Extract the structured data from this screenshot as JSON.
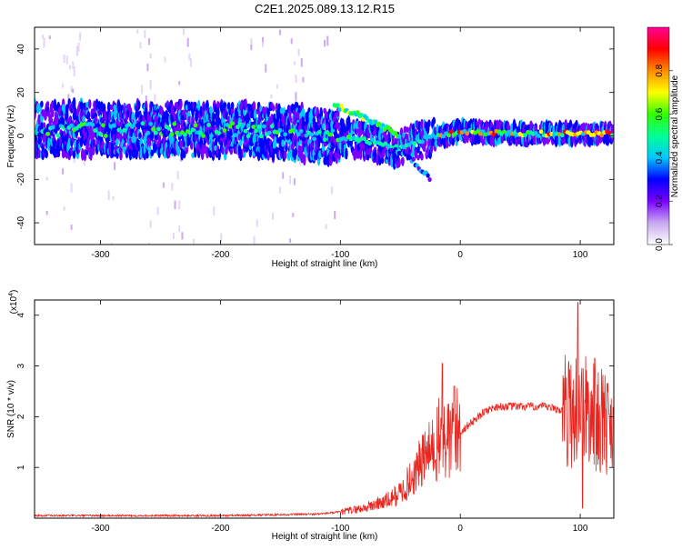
{
  "title": "C2E1.2025.089.13.12.R15",
  "chart_data": [
    {
      "type": "heatmap",
      "xlabel": "Height of straight line (km)",
      "ylabel": "Frequency (Hz)",
      "xlim": [
        -355,
        128
      ],
      "ylim": [
        -50,
        50
      ],
      "xticks": [
        -300,
        -200,
        -100,
        0,
        100
      ],
      "yticks": [
        -40,
        -20,
        0,
        20,
        40
      ],
      "colorbar": {
        "label": "Normalized spectral amplitude",
        "range": [
          0,
          1
        ],
        "ticks": [
          "0.0",
          "0.2",
          "0.4",
          "0.6",
          "0.8"
        ],
        "colors": [
          "#ffffff",
          "#c8a8f0",
          "#7a00ff",
          "#0000ff",
          "#00c8ff",
          "#00ff96",
          "#32ff00",
          "#ffff00",
          "#ff8c00",
          "#ff0000",
          "#ff0096"
        ]
      },
      "ridge": [
        {
          "x": -350,
          "y": 3
        },
        {
          "x": -300,
          "y": 3
        },
        {
          "x": -250,
          "y": 3
        },
        {
          "x": -200,
          "y": 3
        },
        {
          "x": -150,
          "y": 2
        },
        {
          "x": -110,
          "y": 0
        },
        {
          "x": -70,
          "y": -3
        },
        {
          "x": -50,
          "y": -6
        },
        {
          "x": -40,
          "y": -3
        },
        {
          "x": -20,
          "y": 0
        },
        {
          "x": 0,
          "y": 2
        },
        {
          "x": 50,
          "y": 1
        },
        {
          "x": 100,
          "y": 1
        },
        {
          "x": 128,
          "y": 1
        }
      ],
      "upper_branch": [
        {
          "x": -105,
          "y": 14
        },
        {
          "x": -90,
          "y": 11
        },
        {
          "x": -75,
          "y": 7
        },
        {
          "x": -60,
          "y": 3
        },
        {
          "x": -50,
          "y": -1
        }
      ],
      "lower_branch": [
        {
          "x": -60,
          "y": -6
        },
        {
          "x": -45,
          "y": -8
        },
        {
          "x": -35,
          "y": -14
        },
        {
          "x": -25,
          "y": -20
        }
      ]
    },
    {
      "type": "line",
      "xlabel": "Height of straight line (km)",
      "ylabel": "SNR (10 * v/v)",
      "yscale_note": "(x10",
      "yscale_exp": "4",
      "xlim": [
        -355,
        128
      ],
      "ylim": [
        0,
        4.3
      ],
      "xticks": [
        -300,
        -200,
        -100,
        0,
        100
      ],
      "yticks": [
        1,
        2,
        3,
        4
      ],
      "color": "#e8251f",
      "series": [
        {
          "x": [
            -355,
            -300,
            -250,
            -200,
            -170,
            -150,
            -120,
            -100,
            -80,
            -70,
            -60,
            -50,
            -40,
            -30,
            -20,
            -15,
            -10,
            0,
            10,
            20,
            30,
            40,
            50,
            60,
            70,
            80,
            90,
            100,
            110,
            120,
            128
          ],
          "y": [
            0.05,
            0.05,
            0.05,
            0.05,
            0.06,
            0.07,
            0.08,
            0.12,
            0.2,
            0.28,
            0.35,
            0.5,
            0.8,
            1.2,
            1.4,
            1.6,
            1.5,
            1.7,
            1.9,
            2.1,
            2.2,
            2.2,
            2.2,
            2.2,
            2.2,
            2.15,
            2.1,
            2.2,
            2.0,
            1.9,
            1.8
          ]
        }
      ],
      "spikes": [
        {
          "x": -15,
          "y": 3.05
        },
        {
          "x": -5,
          "y": 2.6
        },
        {
          "x": 98,
          "y": 4.25
        },
        {
          "x": 102,
          "y": 3.8
        },
        {
          "x": 112,
          "y": 3.15
        },
        {
          "x": 102,
          "y": 0.2
        }
      ]
    }
  ]
}
